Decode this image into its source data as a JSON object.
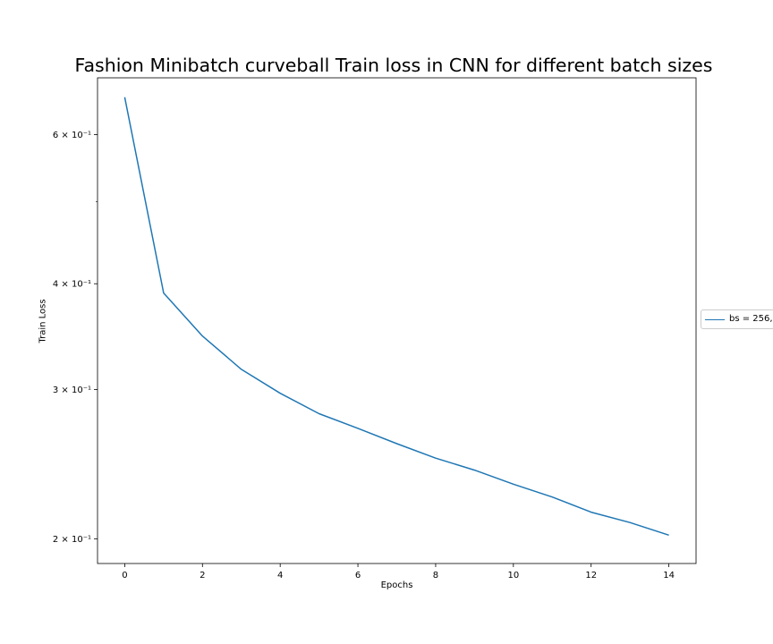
{
  "chart_data": {
    "type": "line",
    "title": "Fashion Minibatch curveball Train loss in CNN for different batch sizes",
    "xlabel": "Epochs",
    "ylabel": "Train Loss",
    "yscale": "log",
    "xlim": [
      -0.7,
      14.7
    ],
    "ylim": [
      0.187,
      0.7
    ],
    "grid": false,
    "legend_placement": "outside-right",
    "x_ticks": [
      0,
      2,
      4,
      6,
      8,
      10,
      12,
      14
    ],
    "y_ticks": [
      {
        "value": 0.2,
        "label": "2 × 10⁻¹"
      },
      {
        "value": 0.3,
        "label": "3 × 10⁻¹"
      },
      {
        "value": 0.4,
        "label": "4 × 10⁻¹"
      },
      {
        "value": 0.6,
        "label": "6 × 10⁻¹"
      }
    ],
    "y_minor_ticks": [
      0.5
    ],
    "x": [
      0,
      1,
      2,
      3,
      4,
      5,
      6,
      7,
      8,
      9,
      10,
      11,
      12,
      13,
      14
    ],
    "series": [
      {
        "name": "bs = 256,",
        "color": "#1f77b4",
        "values": [
          0.664,
          0.39,
          0.347,
          0.317,
          0.297,
          0.281,
          0.27,
          0.259,
          0.249,
          0.241,
          0.232,
          0.224,
          0.215,
          0.209,
          0.202
        ]
      }
    ]
  }
}
